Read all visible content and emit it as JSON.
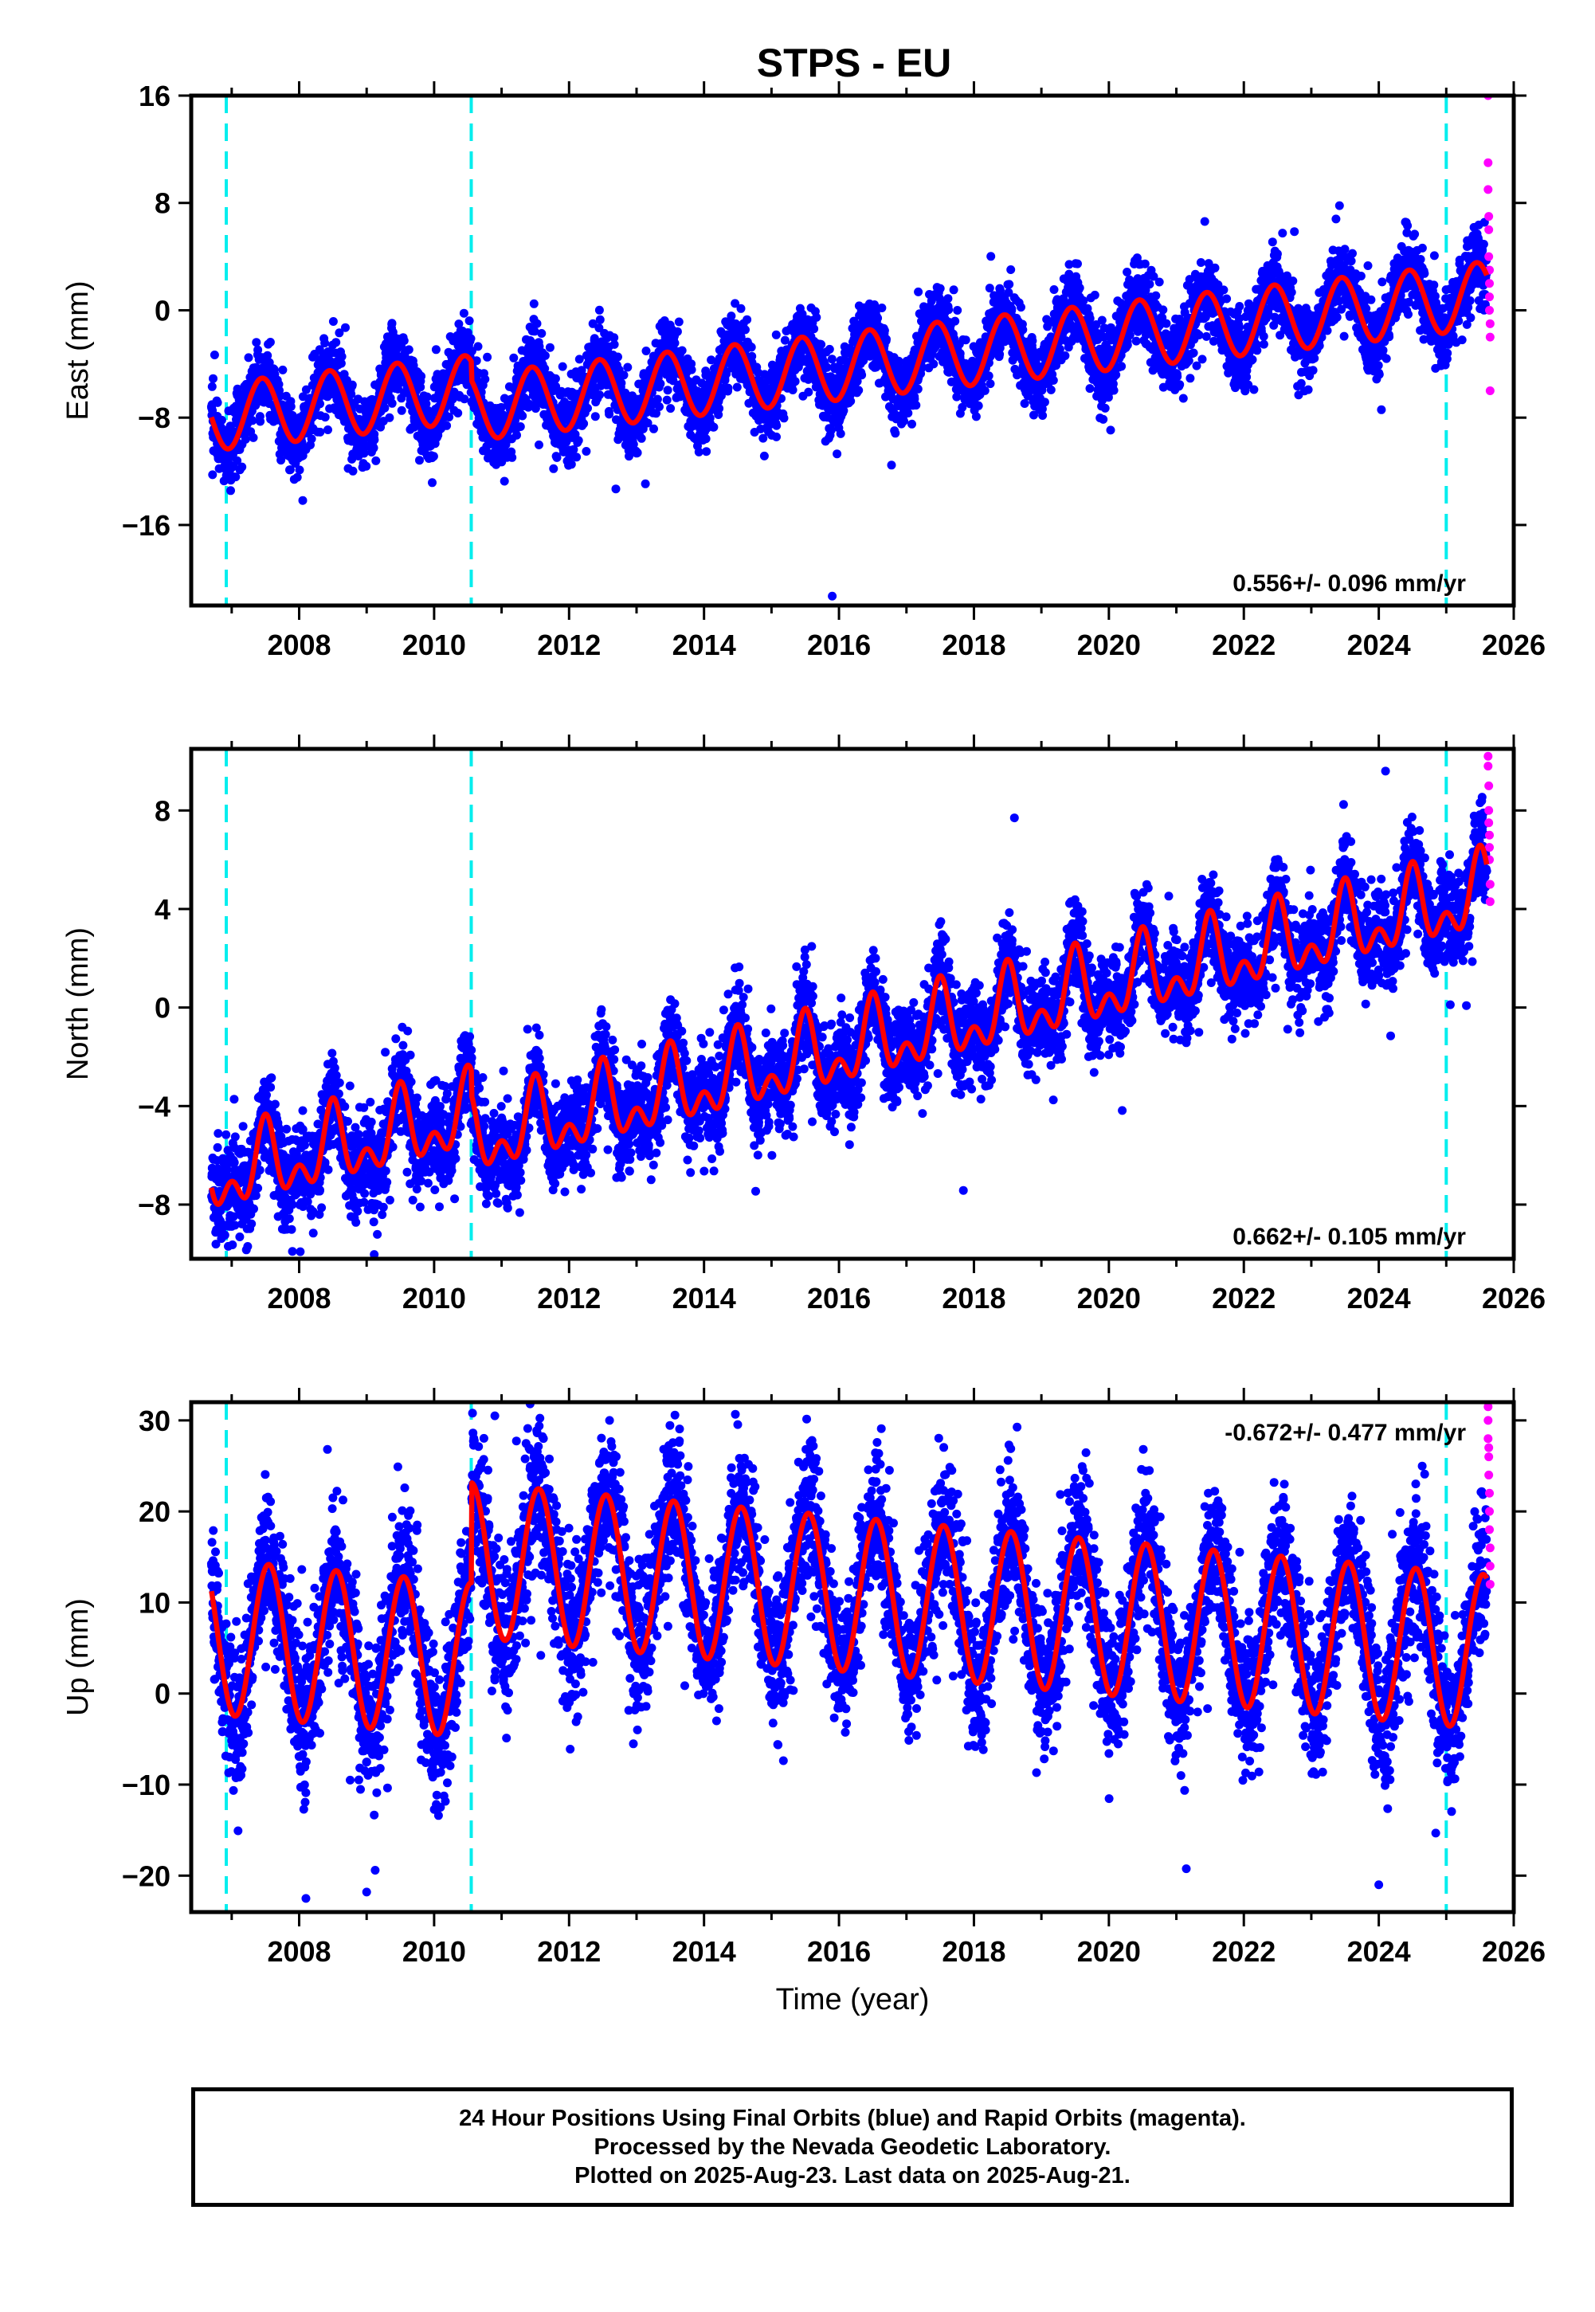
{
  "title": "STPS - EU",
  "footer": {
    "line1": "24 Hour Positions Using Final Orbits (blue) and Rapid Orbits (magenta).",
    "line2": "Processed by the Nevada Geodetic Laboratory.",
    "line3": "Plotted on 2025-Aug-23. Last data on 2025-Aug-21."
  },
  "colors": {
    "final": "#0000ff",
    "rapid": "#ff00ff",
    "model": "#ff0000",
    "breaks": "#00eeee"
  },
  "chart_data": [
    {
      "type": "scatter",
      "component": "east",
      "ylabel": "East (mm)",
      "xlabel": "",
      "xlim": [
        2006.4,
        2026.0
      ],
      "ylim": [
        -22,
        16
      ],
      "yticks": [
        16,
        8,
        0,
        -8,
        -16
      ],
      "xticks": [
        2008,
        2010,
        2012,
        2014,
        2016,
        2018,
        2020,
        2022,
        2024,
        2026
      ],
      "rate_label": "0.556+/- 0.096 mm/yr",
      "rate_position": "bottom-right",
      "break_epochs": [
        2006.92,
        2010.55,
        2025.0
      ],
      "model": {
        "offset": -2.8,
        "rate": 0.556,
        "ref_year": 2016.0,
        "annual_amp": 2.5,
        "annual_phase_year": 0.45,
        "steps": [
          [
            2010.55,
            -1.4
          ]
        ]
      },
      "final_range": [
        2006.7,
        2025.6
      ],
      "scatter_sd": 1.3,
      "outliers": [
        [
          2015.9,
          -21.3
        ],
        [
          2007.2,
          -8.0
        ],
        [
          2011.0,
          -8.2
        ],
        [
          2019.8,
          -5.0
        ]
      ],
      "rapid_points": [
        [
          2025.62,
          16
        ],
        [
          2025.62,
          11
        ],
        [
          2025.62,
          9
        ],
        [
          2025.63,
          7
        ],
        [
          2025.63,
          6
        ],
        [
          2025.63,
          4
        ],
        [
          2025.64,
          3
        ],
        [
          2025.64,
          2
        ],
        [
          2025.64,
          1
        ],
        [
          2025.64,
          0
        ],
        [
          2025.65,
          -1
        ],
        [
          2025.65,
          -2
        ],
        [
          2025.65,
          -6
        ]
      ]
    },
    {
      "type": "scatter",
      "component": "north",
      "ylabel": "North (mm)",
      "xlabel": "",
      "xlim": [
        2006.4,
        2026.0
      ],
      "ylim": [
        -10.2,
        10.5
      ],
      "yticks": [
        8,
        4,
        0,
        -4,
        -8
      ],
      "xticks": [
        2008,
        2010,
        2012,
        2014,
        2016,
        2018,
        2020,
        2022,
        2024,
        2026
      ],
      "rate_label": "0.662+/- 0.105 mm/yr",
      "rate_position": "bottom-right",
      "break_epochs": [
        2006.92,
        2010.55,
        2025.0
      ],
      "model": {
        "offset": -0.8,
        "rate": 0.662,
        "ref_year": 2016.0,
        "annual_amp": 1.2,
        "annual_phase_year": 0.5,
        "semi_amp": 0.9,
        "steps": [
          [
            2010.55,
            -1.0
          ]
        ]
      },
      "final_range": [
        2006.7,
        2025.6
      ],
      "scatter_sd": 0.9,
      "outliers": [
        [
          2007.9,
          -9.9
        ],
        [
          2008.3,
          -8.4
        ],
        [
          2007.9,
          -8.0
        ],
        [
          2018.6,
          7.7
        ],
        [
          2024.1,
          9.6
        ],
        [
          2024.4,
          2.2
        ]
      ],
      "rapid_points": [
        [
          2025.62,
          10.2
        ],
        [
          2025.62,
          9.8
        ],
        [
          2025.63,
          9.0
        ],
        [
          2025.63,
          8.0
        ],
        [
          2025.63,
          7.5
        ],
        [
          2025.64,
          7.0
        ],
        [
          2025.64,
          6.5
        ],
        [
          2025.64,
          6.0
        ],
        [
          2025.65,
          5.0
        ],
        [
          2025.65,
          4.3
        ]
      ]
    },
    {
      "type": "scatter",
      "component": "up",
      "ylabel": "Up (mm)",
      "xlabel": "Time (year)",
      "xlim": [
        2006.4,
        2026.0
      ],
      "ylim": [
        -24,
        32
      ],
      "yticks": [
        30,
        20,
        10,
        0,
        -10,
        -20
      ],
      "xticks": [
        2008,
        2010,
        2012,
        2014,
        2016,
        2018,
        2020,
        2022,
        2024,
        2026
      ],
      "rate_label": "-0.672+/- 0.477 mm/yr",
      "rate_position": "top-right",
      "break_epochs": [
        2006.92,
        2010.55,
        2025.0
      ],
      "model": {
        "offset": 0.0,
        "rate": -0.672,
        "ref_year": 2016.0,
        "annual_amp": 8.5,
        "annual_phase_year": 0.55,
        "steps": [
          [
            2010.55,
            11.0
          ]
        ]
      },
      "final_range": [
        2006.7,
        2025.6
      ],
      "scatter_sd": 3.8,
      "outliers": [
        [
          2010.9,
          30.5
        ],
        [
          2012.6,
          30.0
        ],
        [
          2008.5,
          21.5
        ],
        [
          2008.1,
          -22.5
        ],
        [
          2009.0,
          -21.8
        ],
        [
          2022.6,
          23.0
        ],
        [
          2020.6,
          24.5
        ],
        [
          2024.0,
          -21.0
        ],
        [
          2024.2,
          17.5
        ]
      ],
      "rapid_points": [
        [
          2025.62,
          31.5
        ],
        [
          2025.62,
          30.0
        ],
        [
          2025.62,
          28.0
        ],
        [
          2025.63,
          27.0
        ],
        [
          2025.63,
          26.0
        ],
        [
          2025.63,
          24.0
        ],
        [
          2025.64,
          22.0
        ],
        [
          2025.64,
          20.0
        ],
        [
          2025.64,
          18.0
        ],
        [
          2025.65,
          16.0
        ],
        [
          2025.65,
          14.0
        ],
        [
          2025.65,
          12.0
        ]
      ]
    }
  ]
}
